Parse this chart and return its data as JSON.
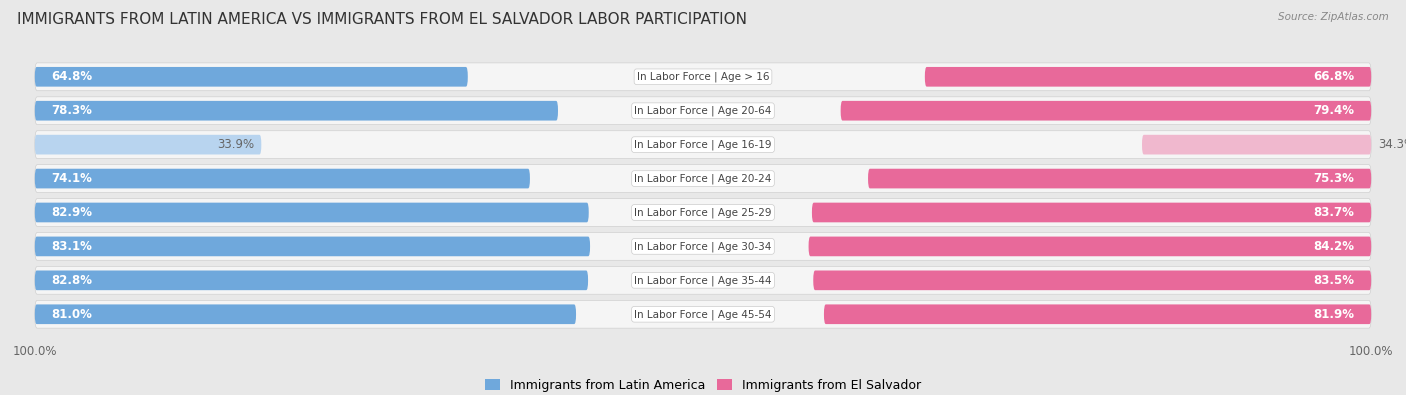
{
  "title": "IMMIGRANTS FROM LATIN AMERICA VS IMMIGRANTS FROM EL SALVADOR LABOR PARTICIPATION",
  "source": "Source: ZipAtlas.com",
  "categories": [
    "In Labor Force | Age > 16",
    "In Labor Force | Age 20-64",
    "In Labor Force | Age 16-19",
    "In Labor Force | Age 20-24",
    "In Labor Force | Age 25-29",
    "In Labor Force | Age 30-34",
    "In Labor Force | Age 35-44",
    "In Labor Force | Age 45-54"
  ],
  "latin_america_values": [
    64.8,
    78.3,
    33.9,
    74.1,
    82.9,
    83.1,
    82.8,
    81.0
  ],
  "el_salvador_values": [
    66.8,
    79.4,
    34.3,
    75.3,
    83.7,
    84.2,
    83.5,
    81.9
  ],
  "latin_america_color": "#6fa8dc",
  "latin_america_color_light": "#b8d4ef",
  "el_salvador_color": "#e8699a",
  "el_salvador_color_light": "#f0b8ce",
  "bg_color": "#e8e8e8",
  "row_bg_color": "#f5f5f5",
  "label_color_white": "#ffffff",
  "label_color_dark": "#666666",
  "max_value": 100.0,
  "legend_label_latin": "Immigrants from Latin America",
  "legend_label_salvador": "Immigrants from El Salvador",
  "title_fontsize": 11,
  "label_fontsize": 8.5,
  "category_fontsize": 7.5,
  "legend_fontsize": 9,
  "axis_label_fontsize": 8.5,
  "light_threshold": 50.0
}
